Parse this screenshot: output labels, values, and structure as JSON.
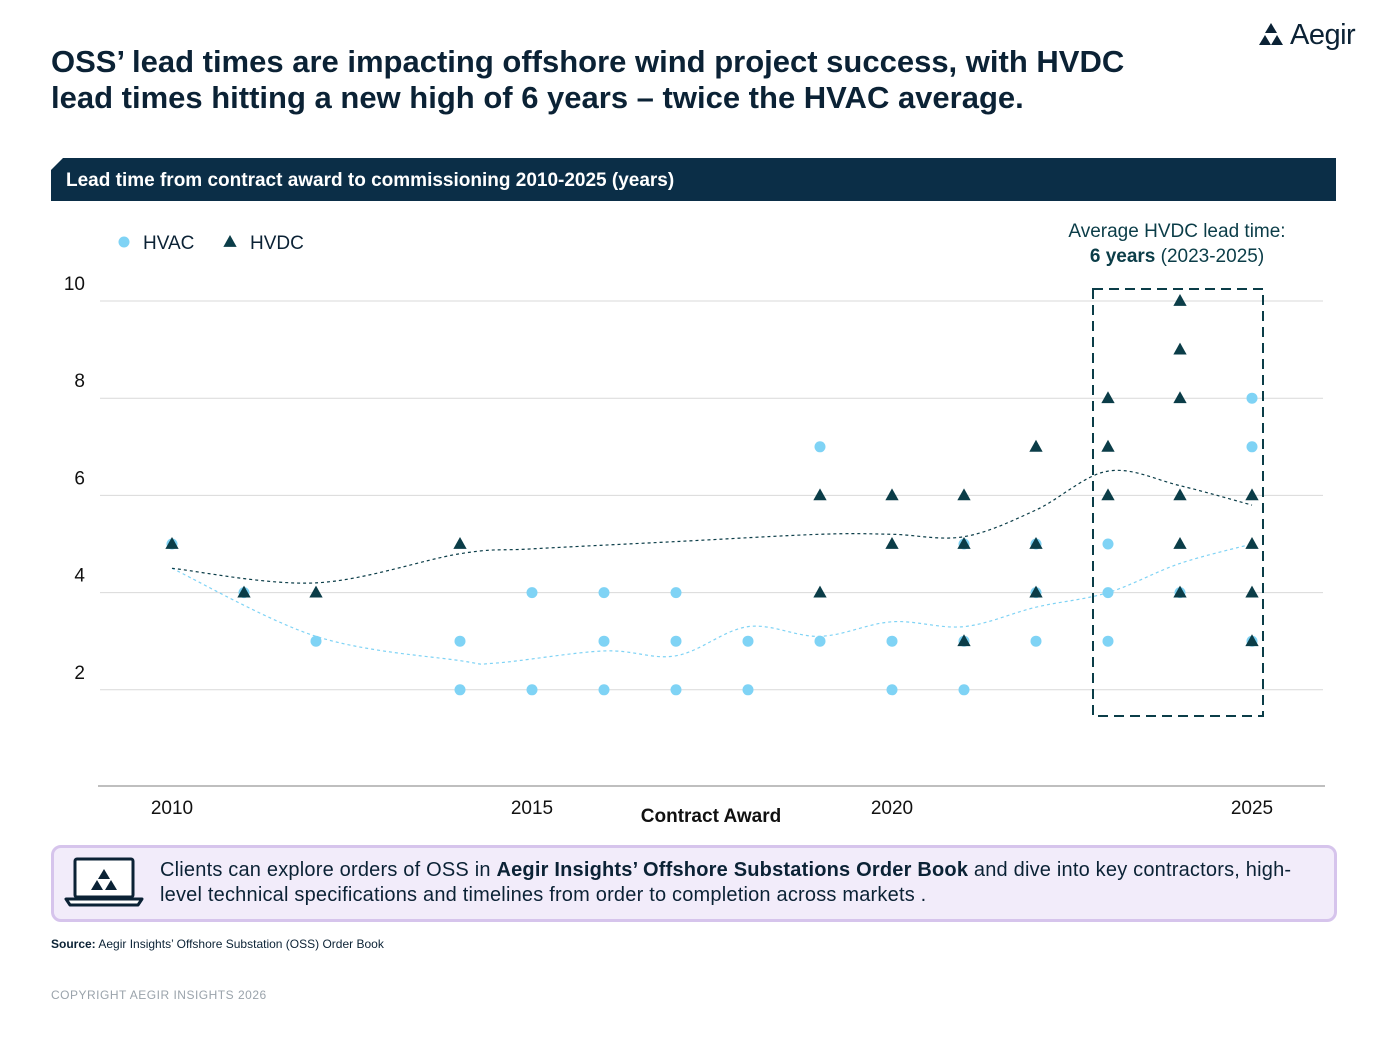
{
  "brand": {
    "name": "Aegir"
  },
  "title_line1": "OSS’ lead times are impacting offshore wind project success, with HVDC",
  "title_line2": "lead times hitting a new high of 6 years – twice the HVAC average.",
  "colors": {
    "navy": "#0b2e47",
    "hvac": "#7fd3f5",
    "hvdc": "#0b3d48",
    "grid": "#d9d9d9",
    "cta_bg": "#f2ecfa",
    "cta_border": "#d6c4ec"
  },
  "chart_data": {
    "type": "scatter",
    "title": "Lead time from contract award to commissioning 2010-2025 (years)",
    "xlabel": "Contract Award",
    "ylabel": "",
    "xlim": [
      2009.0,
      2026.0
    ],
    "ylim": [
      0,
      10
    ],
    "x_ticks": [
      2010,
      2015,
      2020,
      2025
    ],
    "y_ticks": [
      2,
      4,
      6,
      8,
      10
    ],
    "grid": true,
    "legend": [
      "HVAC",
      "HVDC"
    ],
    "series": [
      {
        "name": "HVAC",
        "marker": "circle",
        "points": [
          [
            2010,
            5
          ],
          [
            2011,
            4
          ],
          [
            2012,
            3
          ],
          [
            2014,
            3
          ],
          [
            2014,
            2
          ],
          [
            2015,
            4
          ],
          [
            2015,
            2
          ],
          [
            2016,
            4
          ],
          [
            2016,
            3
          ],
          [
            2016,
            2
          ],
          [
            2017,
            4
          ],
          [
            2017,
            3
          ],
          [
            2017,
            2
          ],
          [
            2018,
            3
          ],
          [
            2018,
            2
          ],
          [
            2019,
            7
          ],
          [
            2019,
            3
          ],
          [
            2020,
            3
          ],
          [
            2020,
            2
          ],
          [
            2021,
            5
          ],
          [
            2021,
            3
          ],
          [
            2021,
            2
          ],
          [
            2022,
            5
          ],
          [
            2022,
            4
          ],
          [
            2022,
            3
          ],
          [
            2023,
            5
          ],
          [
            2023,
            4
          ],
          [
            2023,
            3
          ],
          [
            2024,
            4
          ],
          [
            2025,
            8
          ],
          [
            2025,
            7
          ],
          [
            2025,
            3
          ]
        ],
        "trend": [
          [
            2010,
            4.5
          ],
          [
            2012,
            3.1
          ],
          [
            2014,
            2.6
          ],
          [
            2014.5,
            2.55
          ],
          [
            2016,
            2.8
          ],
          [
            2017,
            2.7
          ],
          [
            2018,
            3.3
          ],
          [
            2019,
            3.1
          ],
          [
            2020,
            3.4
          ],
          [
            2021,
            3.3
          ],
          [
            2022,
            3.7
          ],
          [
            2023,
            4.0
          ],
          [
            2024,
            4.6
          ],
          [
            2025,
            5.0
          ]
        ]
      },
      {
        "name": "HVDC",
        "marker": "triangle",
        "points": [
          [
            2010,
            5
          ],
          [
            2011,
            4
          ],
          [
            2012,
            4
          ],
          [
            2014,
            5
          ],
          [
            2019,
            6
          ],
          [
            2019,
            4
          ],
          [
            2020,
            6
          ],
          [
            2020,
            5
          ],
          [
            2021,
            6
          ],
          [
            2021,
            5
          ],
          [
            2021,
            3
          ],
          [
            2022,
            7
          ],
          [
            2022,
            5
          ],
          [
            2022,
            4
          ],
          [
            2023,
            8
          ],
          [
            2023,
            7
          ],
          [
            2023,
            6
          ],
          [
            2024,
            10
          ],
          [
            2024,
            9
          ],
          [
            2024,
            8
          ],
          [
            2024,
            6
          ],
          [
            2024,
            5
          ],
          [
            2024,
            4
          ],
          [
            2025,
            6
          ],
          [
            2025,
            5
          ],
          [
            2025,
            4
          ],
          [
            2025,
            3
          ]
        ],
        "trend": [
          [
            2010,
            4.5
          ],
          [
            2012,
            4.2
          ],
          [
            2014,
            4.8
          ],
          [
            2015,
            4.9
          ],
          [
            2017,
            5.05
          ],
          [
            2019,
            5.2
          ],
          [
            2020,
            5.2
          ],
          [
            2021,
            5.15
          ],
          [
            2022,
            5.7
          ],
          [
            2023,
            6.5
          ],
          [
            2024,
            6.2
          ],
          [
            2025,
            5.8
          ]
        ]
      }
    ],
    "highlight": {
      "years": [
        2023,
        2025
      ],
      "label_line1": "Average HVDC lead time:",
      "label_bold": "6 years",
      "label_rest": "(2023-2025)"
    }
  },
  "cta": {
    "text_before": "Clients can explore orders of OSS in ",
    "text_bold": "Aegir Insights’ Offshore Substations Order Book",
    "text_after": " and dive into key contractors, high-level technical specifications and timelines from order to completion across markets ."
  },
  "source": {
    "label": "Source:",
    "text": " Aegir Insights’ Offshore Substation (OSS) Order Book"
  },
  "copyright": "COPYRIGHT AEGIR INSIGHTS 2026"
}
